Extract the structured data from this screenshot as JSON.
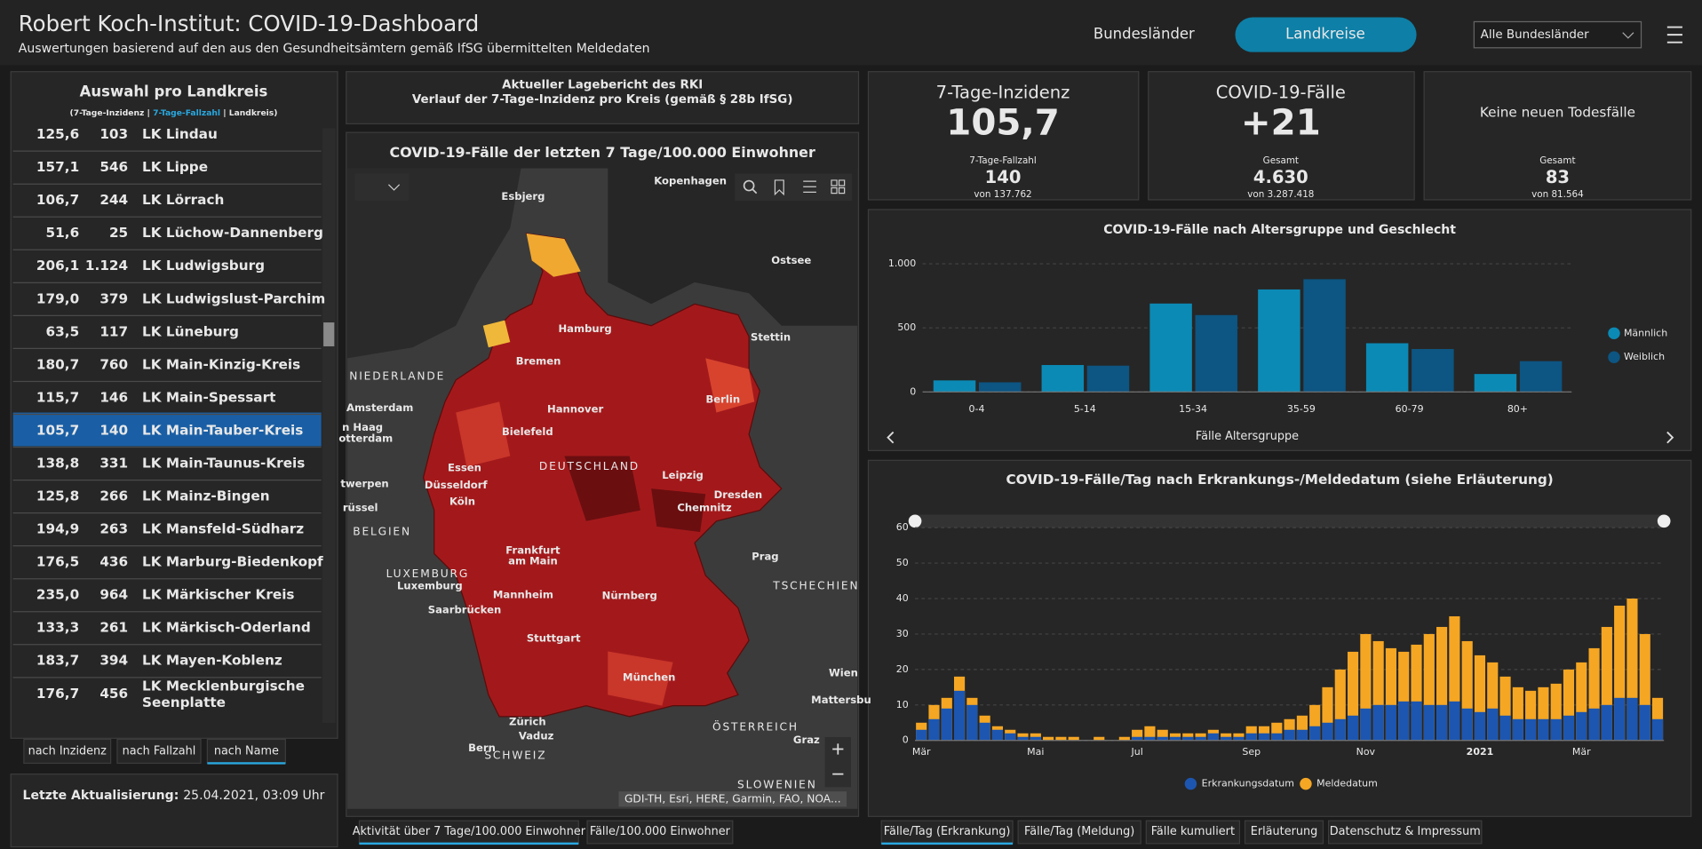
{
  "header": {
    "title": "Robert Koch-Institut: COVID-19-Dashboard",
    "subtitle": "Auswertungen basierend auf den aus den Gesundheitsämtern gemäß IfSG übermittelten Meldedaten",
    "tabs": [
      "Bundesländer",
      "Landkreise"
    ],
    "dropdown": "Alle Bundesländer"
  },
  "list": {
    "title": "Auswahl pro Landkreis",
    "legend": [
      "(7-Tage-Inzidenz |",
      "7-Tage-Fallzahl",
      "| Landkreis)"
    ],
    "rows": [
      [
        "125,6",
        "103",
        "LK Lindau"
      ],
      [
        "157,1",
        "546",
        "LK Lippe"
      ],
      [
        "106,7",
        "244",
        "LK Lörrach"
      ],
      [
        "51,6",
        "25",
        "LK Lüchow-Dannenberg"
      ],
      [
        "206,1",
        "1.124",
        "LK Ludwigsburg"
      ],
      [
        "179,0",
        "379",
        "LK Ludwigslust-Parchim"
      ],
      [
        "63,5",
        "117",
        "LK Lüneburg"
      ],
      [
        "180,7",
        "760",
        "LK Main-Kinzig-Kreis"
      ],
      [
        "115,7",
        "146",
        "LK Main-Spessart"
      ],
      [
        "105,7",
        "140",
        "LK Main-Tauber-Kreis"
      ],
      [
        "138,8",
        "331",
        "LK Main-Taunus-Kreis"
      ],
      [
        "125,8",
        "266",
        "LK Mainz-Bingen"
      ],
      [
        "194,9",
        "263",
        "LK Mansfeld-Südharz"
      ],
      [
        "176,5",
        "436",
        "LK Marburg-Biedenkopf"
      ],
      [
        "235,0",
        "964",
        "LK Märkischer Kreis"
      ],
      [
        "133,3",
        "261",
        "LK Märkisch-Oderland"
      ],
      [
        "183,7",
        "394",
        "LK Mayen-Koblenz"
      ],
      [
        "176,7",
        "456",
        "LK Mecklenburgische Seenplatte"
      ]
    ],
    "selected": 9,
    "sort": [
      "nach Inzidenz",
      "nach Fallzahl",
      "nach Name"
    ],
    "sort_active": 2,
    "updated_label": "Letzte Aktualisierung:",
    "updated": "25.04.2021, 03:09 Uhr"
  },
  "report": {
    "lines": [
      "Aktueller Lagebericht des RKI",
      "Verlauf der 7-Tage-Inzidenz pro Kreis (gemäß § 28b IfSG)"
    ]
  },
  "map": {
    "title": "COVID-19-Fälle der letzten 7 Tage/100.000 Einwohner",
    "labels": [
      "Esbjerg",
      "Kopenhagen",
      "Ostsee",
      "Hamburg",
      "Stettin",
      "Bremen",
      "NIEDERLANDE",
      "Amsterdam",
      "Hannover",
      "Berlin",
      "n Haag",
      "otterdam",
      "Bielefeld",
      "Essen",
      "Düsseldorf",
      "DEUTSCHLAND",
      "Leipzig",
      "Dresden",
      "Köln",
      "Chemnitz",
      "twerpen",
      "rüssel",
      "BELGIEN",
      "Frankfurt",
      "am Main",
      "Prag",
      "TSCHECHIEN",
      "LUXEMBURG",
      "Luxemburg",
      "Mannheim",
      "Nürnberg",
      "Saarbrücken",
      "Stuttgart",
      "Wien",
      "München",
      "Mattersbu",
      "Zürich",
      "ÖSTERREICH",
      "Vaduz",
      "Graz",
      "Bern",
      "SCHWEIZ",
      "SLOWENIEN"
    ],
    "attribution": "GDI-TH, Esri, HERE, Garmin, FAO, NOA...",
    "tabs": [
      "Aktivität über 7 Tage/100.000 Einwohner",
      "Fälle/100.000 Einwohner"
    ]
  },
  "kpis": [
    {
      "title": "7-Tage-Inzidenz",
      "value": "105,7",
      "sub_label": "7-Tage-Fallzahl",
      "sub_value": "140",
      "sub_total": "von 137.762"
    },
    {
      "title": "COVID-19-Fälle",
      "value": "+21",
      "sub_label": "Gesamt",
      "sub_value": "4.630",
      "sub_total": "von 3.287.418"
    },
    {
      "title": "Keine neuen Todesfälle",
      "sub_label": "Gesamt",
      "sub_value": "83",
      "sub_total": "von 81.564"
    }
  ],
  "chart_data": [
    {
      "type": "bar",
      "title": "COVID-19-Fälle nach Altersgruppe und Geschlecht",
      "xlabel": "Fälle Altersgruppe",
      "categories": [
        "0-4",
        "5-14",
        "15-34",
        "35-59",
        "60-79",
        "80+"
      ],
      "series": [
        {
          "name": "Männlich",
          "color": "#0b8ab5",
          "values": [
            90,
            210,
            690,
            800,
            380,
            140
          ]
        },
        {
          "name": "Weiblich",
          "color": "#0d5582",
          "values": [
            75,
            205,
            600,
            880,
            335,
            240
          ]
        }
      ],
      "ylim": [
        0,
        1000
      ],
      "yticks": [
        0,
        500,
        {
          "value": 1000,
          "label": "1.000"
        }
      ],
      "grid": true,
      "legend": "right"
    },
    {
      "type": "bar",
      "title": "COVID-19-Fälle/Tag nach Erkrankungs-/Meldedatum (siehe Erläuterung)",
      "barmode": "overlay",
      "categories": [
        "Mär",
        null,
        null,
        null,
        null,
        null,
        null,
        null,
        null,
        "Mai",
        null,
        null,
        null,
        null,
        null,
        null,
        null,
        "Jul",
        null,
        null,
        null,
        null,
        null,
        null,
        null,
        null,
        "Sep",
        null,
        null,
        null,
        null,
        null,
        null,
        null,
        null,
        "Nov",
        null,
        null,
        null,
        null,
        null,
        null,
        null,
        null,
        "2021",
        null,
        null,
        null,
        null,
        null,
        null,
        null,
        "Mär",
        null,
        null,
        null,
        null,
        null,
        null
      ],
      "series": [
        {
          "name": "Meldedatum",
          "color": "#f5a623",
          "values": [
            5,
            10,
            12,
            18,
            12,
            7,
            4,
            3,
            2,
            2,
            1,
            1,
            1,
            0,
            1,
            0,
            1,
            3,
            4,
            3,
            2,
            2,
            2,
            3,
            2,
            2,
            4,
            4,
            5,
            6,
            7,
            10,
            15,
            20,
            25,
            30,
            28,
            26,
            25,
            27,
            30,
            32,
            35,
            28,
            24,
            22,
            18,
            15,
            14,
            15,
            16,
            20,
            22,
            26,
            32,
            38,
            40,
            30,
            12
          ]
        },
        {
          "name": "Erkrankungsdatum",
          "color": "#1c56b0",
          "values": [
            3,
            6,
            9,
            14,
            10,
            5,
            3,
            2,
            1,
            1,
            0,
            0,
            0,
            0,
            0,
            0,
            0,
            1,
            1,
            1,
            1,
            1,
            1,
            2,
            1,
            1,
            2,
            2,
            2,
            3,
            3,
            4,
            5,
            6,
            7,
            9,
            10,
            10,
            11,
            11,
            10,
            10,
            11,
            9,
            8,
            9,
            7,
            6,
            6,
            6,
            6,
            7,
            8,
            9,
            10,
            12,
            12,
            10,
            6
          ]
        }
      ],
      "ylim": [
        0,
        60
      ],
      "yticks": [
        0,
        10,
        20,
        30,
        40,
        50,
        60
      ],
      "grid": true,
      "legend": "bottom"
    }
  ],
  "bottom_tabs": [
    "Fälle/Tag (Erkrankung)",
    "Fälle/Tag (Meldung)",
    "Fälle kumuliert",
    "Erläuterung",
    "Datenschutz & Impressum"
  ]
}
